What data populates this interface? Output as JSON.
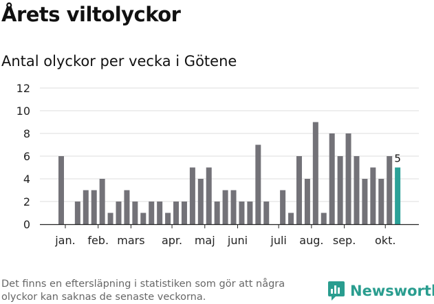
{
  "header": {
    "title": "Årets viltolyckor",
    "subtitle": "Antal olyckor per vecka i Götene"
  },
  "footer": {
    "note": "Det finns en eftersläpning i statistiken som gör att några olyckor kan saknas de senaste veckorna.",
    "brand": "Newsworthy",
    "brand_icon": "newsworthy-logo-icon"
  },
  "colors": {
    "bar": "#737278",
    "highlight": "#2aa198",
    "grid": "#dedede",
    "axis": "#222222"
  },
  "chart_data": {
    "type": "bar",
    "title": "Antal olyckor per vecka i Götene",
    "xlabel": "",
    "ylabel": "",
    "ylim": [
      0,
      12
    ],
    "yticks": [
      0,
      2,
      4,
      6,
      8,
      10,
      12
    ],
    "grid": true,
    "weeks": [
      1,
      2,
      3,
      4,
      5,
      6,
      7,
      8,
      9,
      10,
      11,
      12,
      13,
      14,
      15,
      16,
      17,
      18,
      19,
      20,
      21,
      22,
      23,
      24,
      25,
      26,
      27,
      28,
      29,
      30,
      31,
      32,
      33,
      34,
      35,
      36,
      37,
      38,
      39,
      40,
      41,
      42
    ],
    "values": [
      6,
      0,
      2,
      3,
      3,
      4,
      1,
      2,
      3,
      2,
      1,
      2,
      2,
      1,
      2,
      2,
      5,
      4,
      5,
      2,
      3,
      3,
      2,
      2,
      7,
      2,
      0,
      3,
      1,
      6,
      4,
      9,
      1,
      8,
      6,
      8,
      6,
      4,
      5,
      4,
      6,
      5
    ],
    "highlight_last": true,
    "data_labels": [
      {
        "week": 42,
        "text": "5"
      }
    ],
    "month_labels": [
      {
        "label": "jan.",
        "week": 1.5
      },
      {
        "label": "feb.",
        "week": 5.5
      },
      {
        "label": "mars",
        "week": 9.5
      },
      {
        "label": "apr.",
        "week": 14.5
      },
      {
        "label": "maj",
        "week": 18.5
      },
      {
        "label": "juni",
        "week": 22.5
      },
      {
        "label": "juli",
        "week": 27.5
      },
      {
        "label": "aug.",
        "week": 31.5
      },
      {
        "label": "sep.",
        "week": 35.5
      },
      {
        "label": "okt.",
        "week": 40.5
      }
    ]
  }
}
